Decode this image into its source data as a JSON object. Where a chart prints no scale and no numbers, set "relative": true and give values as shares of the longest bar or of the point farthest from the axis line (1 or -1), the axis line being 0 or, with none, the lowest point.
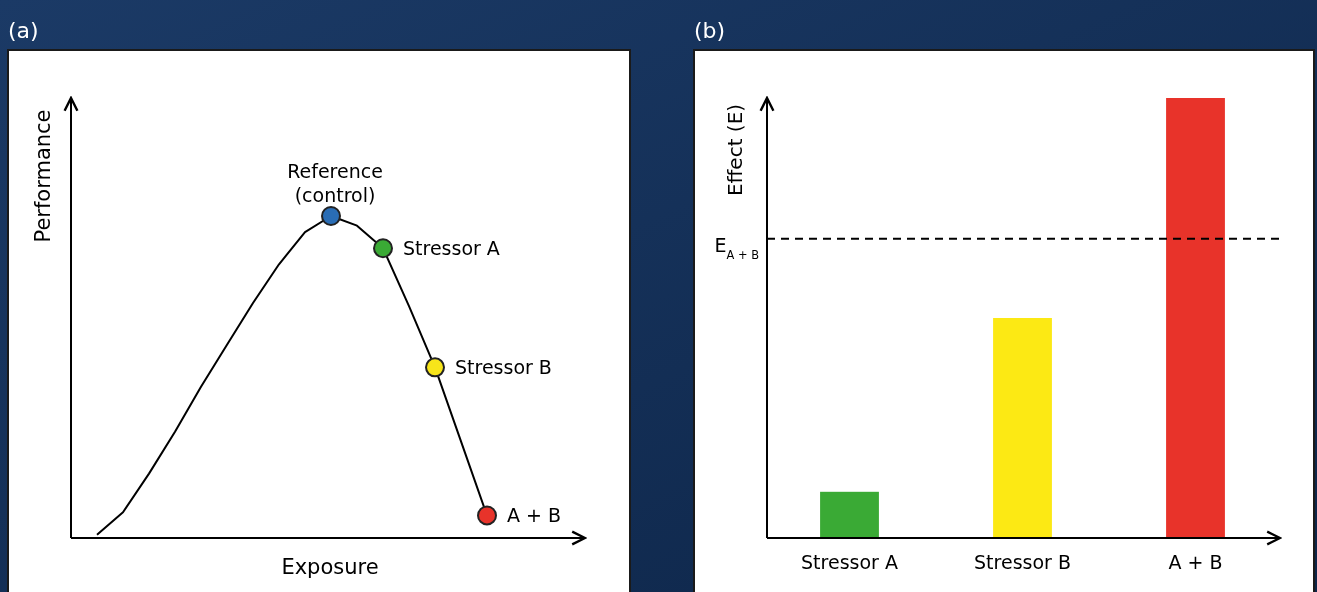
{
  "chart_data": [
    {
      "type": "line",
      "title": "(a)",
      "xlabel": "Exposure",
      "ylabel": "Performance",
      "relative": true,
      "categories": [
        null,
        null,
        null,
        null,
        null,
        null,
        null,
        null,
        null,
        null,
        null,
        null,
        null,
        null,
        null,
        null,
        null,
        null,
        null,
        null
      ],
      "series": [
        {
          "color": "#000000",
          "values": [
            null,
            0.01,
            0.08,
            0.2,
            0.33,
            0.47,
            0.6,
            0.73,
            0.85,
            0.95,
            1.0,
            0.97,
            0.9,
            0.72,
            0.53,
            0.3,
            0.07,
            null,
            null,
            null
          ],
          "colors": [
            null,
            null,
            null,
            null,
            null,
            null,
            null,
            null,
            null,
            null,
            "#2a6db5",
            null,
            "#3aaa35",
            null,
            "#f7e51a",
            null,
            "#e8332a",
            null,
            null,
            null
          ]
        }
      ],
      "annotations": [
        "Reference (control)",
        "Stressor A",
        "Stressor B",
        "A + B"
      ]
    },
    {
      "type": "bar",
      "title": "(b)",
      "ylabel": "Effect (E)",
      "relative": true,
      "categories": [
        "Stressor A",
        "Stressor B",
        "A + B"
      ],
      "values": [
        0.105,
        0.5,
        1.0
      ],
      "colors": [
        "#3aaa35",
        "#fce914",
        "#e8332a"
      ],
      "ref_lines": [
        {
          "axis": "y",
          "value": 0.68,
          "label": "E$_{A + B}$",
          "line_style": "dashed",
          "color": "#000000"
        }
      ]
    }
  ]
}
